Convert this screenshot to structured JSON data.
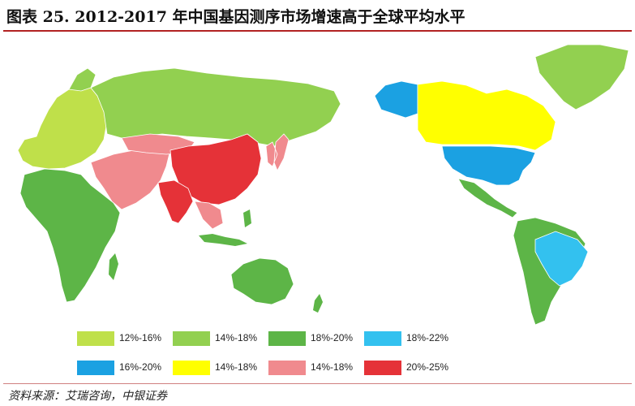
{
  "title": "图表 25. 2012-2017 年中国基因测序市场增速高于全球平均水平",
  "legend": [
    {
      "label": "12%-16%",
      "color": "#bfe04a"
    },
    {
      "label": "14%-18%",
      "color": "#92d050"
    },
    {
      "label": "18%-20%",
      "color": "#5db547"
    },
    {
      "label": "18%-22%",
      "color": "#33c1ef"
    },
    {
      "label": "16%-20%",
      "color": "#1ba1e2"
    },
    {
      "label": "14%-18%",
      "color": "#ffff00"
    },
    {
      "label": "14%-18%",
      "color": "#f08a8e"
    },
    {
      "label": "20%-25%",
      "color": "#e53238"
    }
  ],
  "source": "资料来源：艾瑞咨询，中银证券"
}
